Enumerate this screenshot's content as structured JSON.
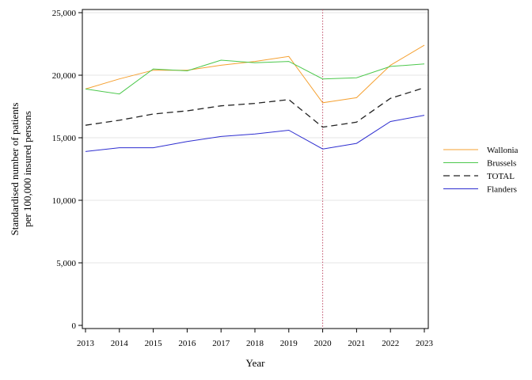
{
  "chart_data": {
    "type": "line",
    "xlabel": "Year",
    "ylabel_lines": [
      "Standardised number of patients",
      "per 100,000 insured persons"
    ],
    "x": [
      2013,
      2014,
      2015,
      2016,
      2017,
      2018,
      2019,
      2020,
      2021,
      2022,
      2023
    ],
    "x_tick_labels": [
      "2013",
      "2014",
      "2015",
      "2016",
      "2017",
      "2018",
      "2019",
      "2020",
      "2021",
      "2022",
      "2023"
    ],
    "ylim": [
      0,
      25000
    ],
    "y_ticks": [
      0,
      5000,
      10000,
      15000,
      20000,
      25000
    ],
    "y_tick_labels": [
      "0",
      "5,000",
      "10,000",
      "15,000",
      "20,000",
      "25,000"
    ],
    "grid": "horizontal",
    "reference_line": {
      "x": 2020,
      "color": "#C0506A",
      "style": "dotted"
    },
    "legend_position": "right",
    "series": [
      {
        "name": "Wallonia",
        "color": "#F5A030",
        "dash": "solid",
        "values": [
          18900,
          19700,
          20400,
          20400,
          20800,
          21100,
          21500,
          17800,
          18200,
          20800,
          22400
        ]
      },
      {
        "name": "Brussels",
        "color": "#4CC84C",
        "dash": "solid",
        "values": [
          18900,
          18500,
          20500,
          20350,
          21200,
          21000,
          21100,
          19700,
          19800,
          20700,
          20900
        ]
      },
      {
        "name": "TOTAL",
        "color": "#222222",
        "dash": "dashed",
        "values": [
          16000,
          16400,
          16900,
          17150,
          17550,
          17750,
          18050,
          15850,
          16250,
          18150,
          19000
        ]
      },
      {
        "name": "Flanders",
        "color": "#2E2ED0",
        "dash": "solid",
        "values": [
          13900,
          14200,
          14200,
          14700,
          15100,
          15300,
          15600,
          14100,
          14550,
          16300,
          16800
        ]
      }
    ]
  }
}
